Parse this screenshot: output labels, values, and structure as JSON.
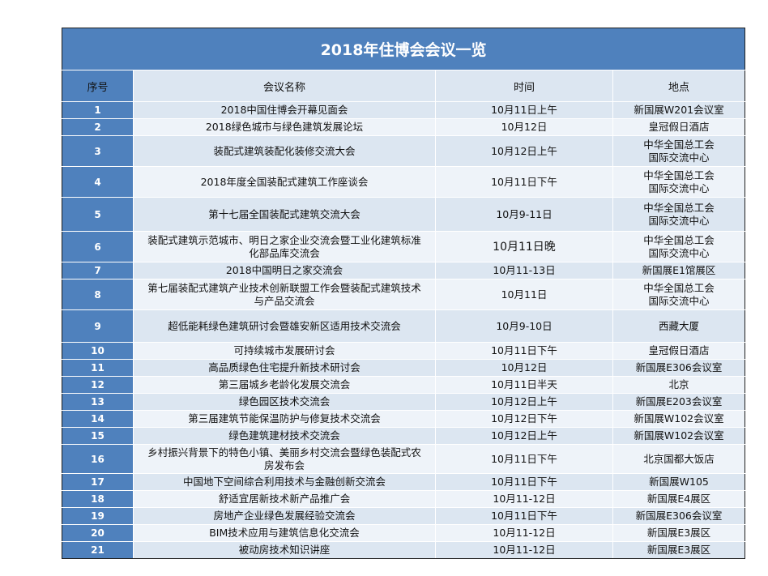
{
  "title": "2018年住博会会议一览",
  "headers": {
    "index": "序号",
    "name": "会议名称",
    "time": "时间",
    "place": "地点"
  },
  "rows": [
    {
      "index": "1",
      "name": "2018中国住博会开幕见面会",
      "time": "10月11日上午",
      "place": "新国展W201会议室"
    },
    {
      "index": "2",
      "name": "2018绿色城市与绿色建筑发展论坛",
      "time": "10月12日",
      "place": "皇冠假日酒店"
    },
    {
      "index": "3",
      "name": "装配式建筑装配化装修交流大会",
      "time": "10月12日上午",
      "place": "中华全国总工会\n国际交流中心"
    },
    {
      "index": "4",
      "name": "2018年度全国装配式建筑工作座谈会",
      "time": "10月11日下午",
      "place": "中华全国总工会\n国际交流中心"
    },
    {
      "index": "5",
      "name": "第十七届全国装配式建筑交流大会",
      "time": "10月9-11日",
      "place": "中华全国总工会\n国际交流中心"
    },
    {
      "index": "6",
      "name": "装配式建筑示范城市、明日之家企业交流会暨工业化建筑标准化部品库交流会",
      "time": "10月11日晚",
      "place": "中华全国总工会\n国际交流中心"
    },
    {
      "index": "7",
      "name": "2018中国明日之家交流会",
      "time": "10月11-13日",
      "place": "新国展E1馆展区"
    },
    {
      "index": "8",
      "name": "第七届装配式建筑产业技术创新联盟工作会暨装配式建筑技术与产品交流会",
      "time": "10月11日",
      "place": "中华全国总工会\n国际交流中心"
    },
    {
      "index": "9",
      "name": "超低能耗绿色建筑研讨会暨雄安新区适用技术交流会",
      "time": "10月9-10日",
      "place": "西藏大厦"
    },
    {
      "index": "10",
      "name": "可持续城市发展研讨会",
      "time": "10月11日下午",
      "place": "皇冠假日酒店"
    },
    {
      "index": "11",
      "name": "高品质绿色住宅提升新技术研讨会",
      "time": "10月12日",
      "place": "新国展E306会议室"
    },
    {
      "index": "12",
      "name": "第三届城乡老龄化发展交流会",
      "time": "10月11日半天",
      "place": "北京"
    },
    {
      "index": "13",
      "name": "绿色园区技术交流会",
      "time": "10月12日上午",
      "place": "新国展E203会议室"
    },
    {
      "index": "14",
      "name": "第三届建筑节能保温防护与修复技术交流会",
      "time": "10月12日下午",
      "place": "新国展W102会议室"
    },
    {
      "index": "15",
      "name": "绿色建筑建材技术交流会",
      "time": "10月12日上午",
      "place": "新国展W102会议室"
    },
    {
      "index": "16",
      "name": "乡村振兴背景下的特色小镇、美丽乡村交流会暨绿色装配式农房发布会",
      "time": "10月11日下午",
      "place": "北京国都大饭店"
    },
    {
      "index": "17",
      "name": "中国地下空间综合利用技术与金融创新交流会",
      "time": "10月11日下午",
      "place": "新国展W105"
    },
    {
      "index": "18",
      "name": "舒适宜居新技术新产品推广会",
      "time": "10月11-12日",
      "place": "新国展E4展区"
    },
    {
      "index": "19",
      "name": "房地产企业绿色发展经验交流会",
      "time": "10月11日下午",
      "place": "新国展E306会议室"
    },
    {
      "index": "20",
      "name": "BIM技术应用与建筑信息化交流会",
      "time": "10月11-12日",
      "place": "新国展E3展区"
    },
    {
      "index": "21",
      "name": "被动房技术知识讲座",
      "time": "10月11-12日",
      "place": "新国展E3展区"
    }
  ]
}
